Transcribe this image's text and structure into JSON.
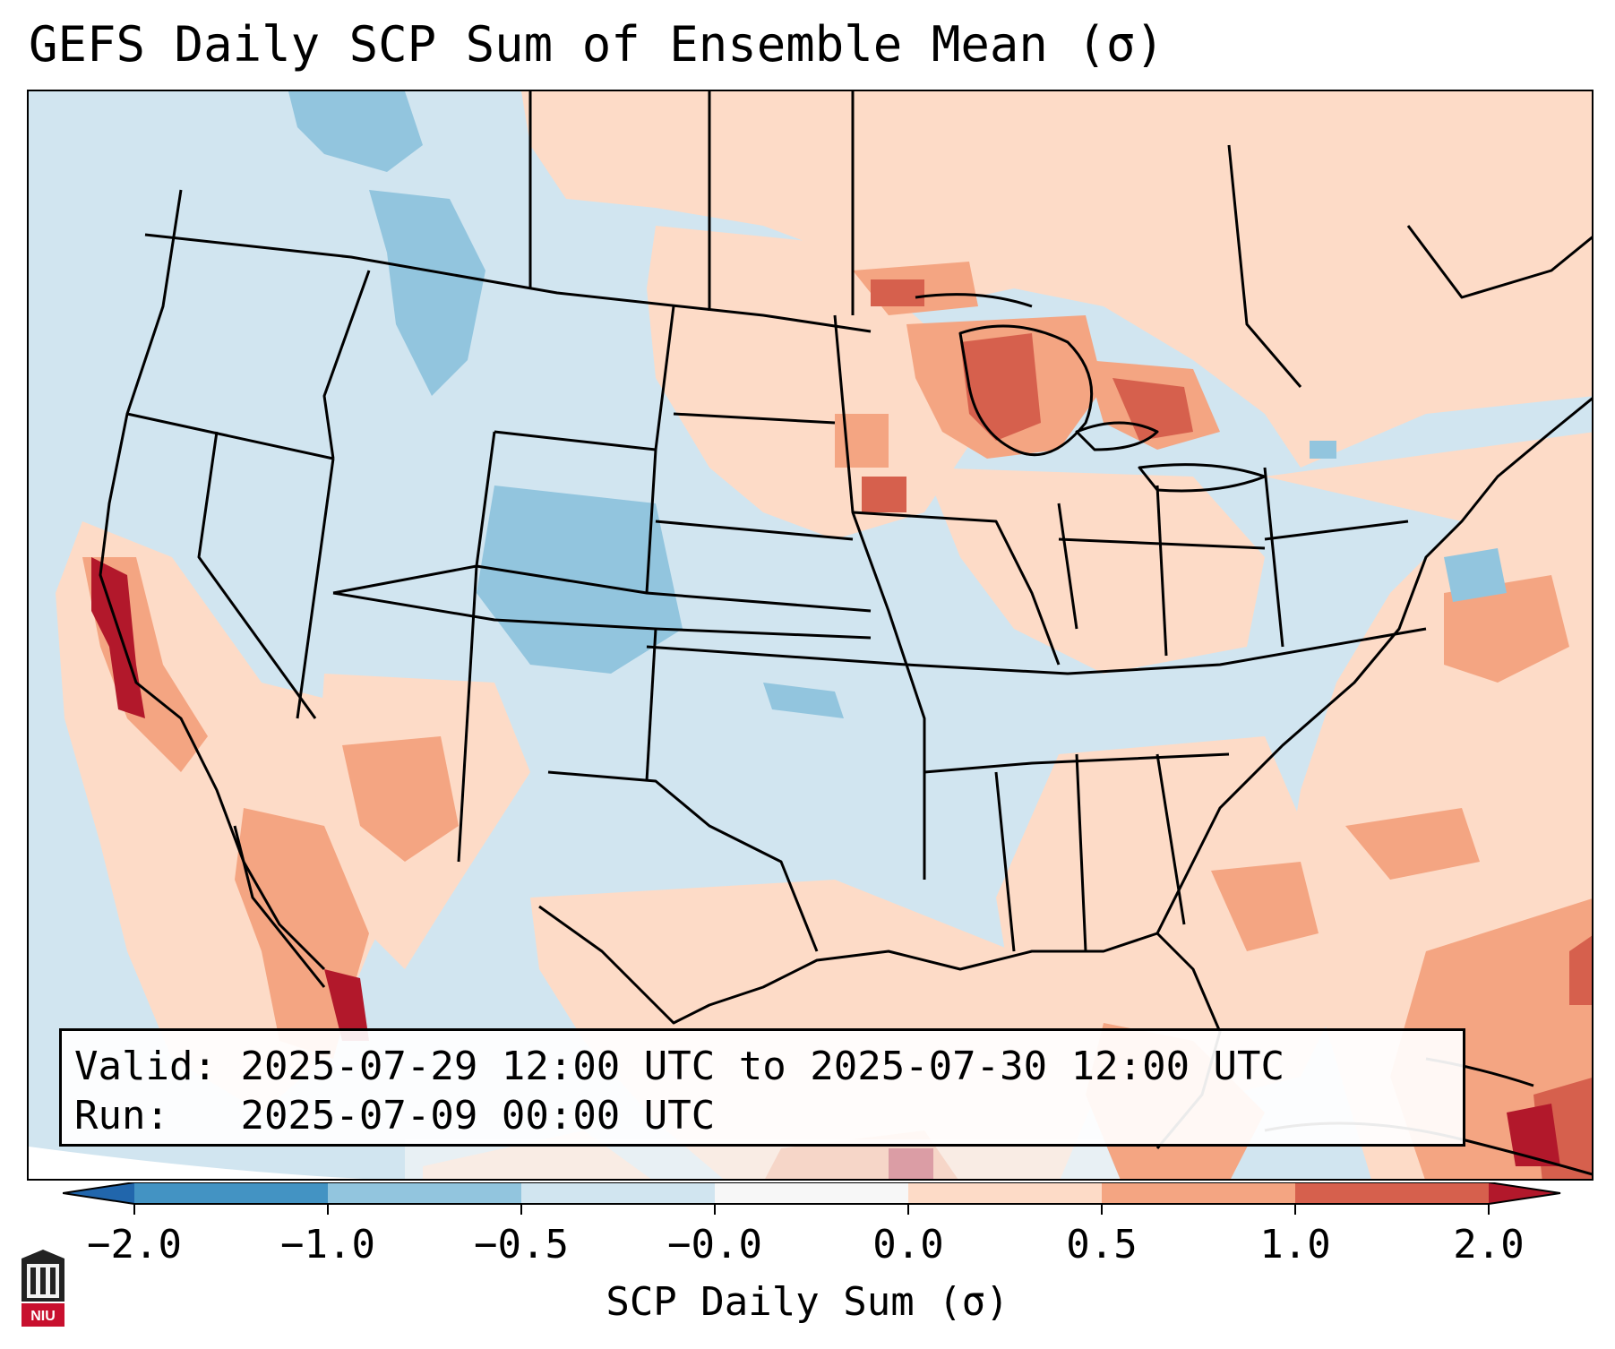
{
  "title": "GEFS Daily SCP Sum of Ensemble Mean (σ)",
  "info": {
    "valid_label": "Valid:",
    "valid_value": "2025-07-29 12:00 UTC to 2025-07-30 12:00 UTC",
    "run_label": "Run:",
    "run_value": "2025-07-09 00:00 UTC"
  },
  "colorbar": {
    "label": "SCP Daily Sum (σ)",
    "ticks": [
      "−2.0",
      "−1.0",
      "−0.5",
      "−0.0",
      "0.0",
      "0.5",
      "1.0",
      "2.0"
    ],
    "colors": [
      "#4393c3",
      "#92c5de",
      "#d1e5f0",
      "#f7f7f7",
      "#fddbc7",
      "#f4a582",
      "#d6604d"
    ],
    "under_color": "#2166ac",
    "over_color": "#b2182b"
  },
  "colors": {
    "ocean_background": "#d1e5f0",
    "light_positive": "#fddbc7",
    "medium_positive": "#f4a582",
    "strong_positive": "#d6604d",
    "extreme_positive": "#b2182b",
    "light_negative": "#92c5de",
    "neutral": "#f7f7f7",
    "border_color": "#000000"
  },
  "logo": {
    "text": "NIU"
  }
}
